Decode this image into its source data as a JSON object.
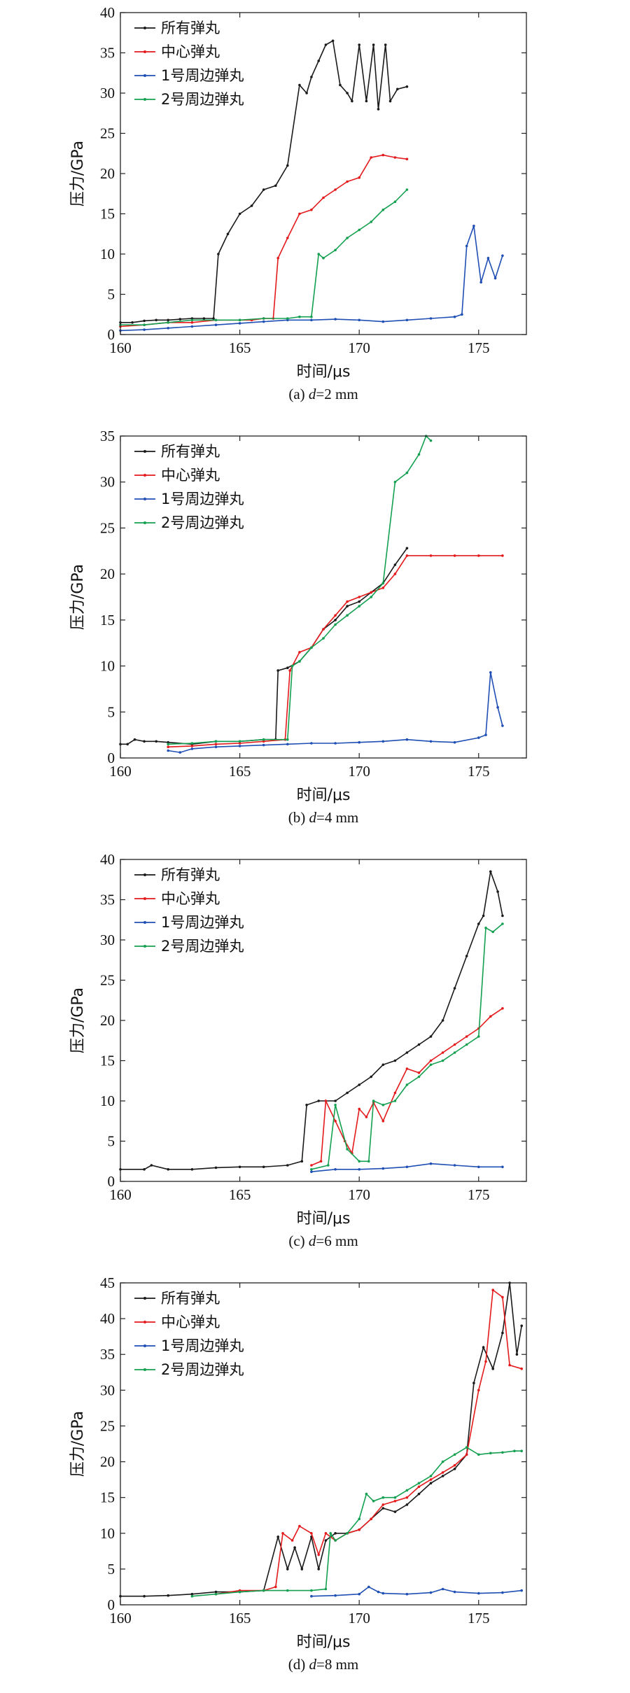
{
  "chart_data": [
    {
      "type": "line",
      "caption": "(a) d=2 mm",
      "xlabel": "时间/μs",
      "ylabel": "压力/GPa",
      "xlim": [
        160,
        177
      ],
      "ylim": [
        0,
        40
      ],
      "xticks": [
        160,
        165,
        170,
        175
      ],
      "yticks": [
        0,
        5,
        10,
        15,
        20,
        25,
        30,
        35,
        40
      ],
      "legend_position": "top-left",
      "series": [
        {
          "name": "所有弹丸",
          "color": "#1a1a1a",
          "x": [
            160,
            160.5,
            161,
            161.5,
            162,
            162.5,
            163,
            163.5,
            163.9,
            164.1,
            164.5,
            165,
            165.5,
            166,
            166.5,
            167,
            167.5,
            167.8,
            168,
            168.3,
            168.6,
            168.9,
            169.2,
            169.5,
            169.7,
            170,
            170.3,
            170.6,
            170.8,
            171.1,
            171.3,
            171.6,
            172
          ],
          "y": [
            1.5,
            1.5,
            1.7,
            1.8,
            1.8,
            1.9,
            2,
            2,
            2,
            10,
            12.5,
            15,
            16,
            18,
            18.5,
            21,
            31,
            30,
            32,
            34,
            36,
            36.5,
            31,
            30,
            29,
            36,
            29,
            36,
            28,
            36,
            29,
            30.5,
            30.8
          ]
        },
        {
          "name": "中心弹丸",
          "color": "#e41a1c",
          "x": [
            160,
            161,
            162,
            163,
            164,
            165,
            165.5,
            166,
            166.4,
            166.6,
            167,
            167.5,
            168,
            168.5,
            169,
            169.5,
            170,
            170.5,
            171,
            171.5,
            172
          ],
          "y": [
            1,
            1.2,
            1.5,
            1.5,
            1.8,
            1.8,
            1.8,
            2,
            2,
            9.5,
            12,
            15,
            15.5,
            17,
            18,
            19,
            19.5,
            22,
            22.3,
            22,
            21.8
          ]
        },
        {
          "name": "1号周边弹丸",
          "color": "#1f4fb4",
          "x": [
            160,
            161,
            162,
            163,
            164,
            165,
            166,
            167,
            168,
            169,
            170,
            171,
            172,
            173,
            174,
            174.3,
            174.5,
            174.8,
            175.1,
            175.4,
            175.7,
            176
          ],
          "y": [
            0.5,
            0.6,
            0.8,
            1,
            1.2,
            1.4,
            1.6,
            1.8,
            1.8,
            1.9,
            1.8,
            1.6,
            1.8,
            2,
            2.2,
            2.5,
            11,
            13.5,
            6.5,
            9.5,
            7,
            9.8
          ]
        },
        {
          "name": "2号周边弹丸",
          "color": "#14a050",
          "x": [
            160,
            161,
            162,
            163,
            164,
            165,
            166,
            167,
            167.5,
            168,
            168.3,
            168.5,
            169,
            169.5,
            170,
            170.5,
            171,
            171.5,
            172
          ],
          "y": [
            1.2,
            1.2,
            1.5,
            1.8,
            1.8,
            1.8,
            2,
            2,
            2.2,
            2.2,
            10,
            9.5,
            10.5,
            12,
            13,
            14,
            15.5,
            16.5,
            18
          ]
        }
      ]
    },
    {
      "type": "line",
      "caption": "(b) d=4 mm",
      "xlabel": "时间/μs",
      "ylabel": "压力/GPa",
      "xlim": [
        160,
        177
      ],
      "ylim": [
        0,
        35
      ],
      "xticks": [
        160,
        165,
        170,
        175
      ],
      "yticks": [
        0,
        5,
        10,
        15,
        20,
        25,
        30,
        35
      ],
      "legend_position": "top-left",
      "series": [
        {
          "name": "所有弹丸",
          "color": "#1a1a1a",
          "x": [
            160,
            160.3,
            160.6,
            161,
            161.5,
            162,
            163,
            164,
            165,
            166,
            166.5,
            166.6,
            167,
            167.5,
            168,
            168.5,
            169,
            169.5,
            170,
            170.5,
            171,
            171.5,
            172
          ],
          "y": [
            1.5,
            1.5,
            2,
            1.8,
            1.8,
            1.7,
            1.5,
            1.8,
            1.8,
            2,
            2,
            9.5,
            9.8,
            10.5,
            12,
            14,
            15,
            16.5,
            17,
            18,
            19,
            21,
            22.8
          ]
        },
        {
          "name": "中心弹丸",
          "color": "#e41a1c",
          "x": [
            162,
            163,
            164,
            165,
            166,
            166.9,
            167.1,
            167.5,
            168,
            168.5,
            169,
            169.5,
            170,
            170.5,
            171,
            171.5,
            172,
            173,
            174,
            175,
            176
          ],
          "y": [
            1.2,
            1.3,
            1.5,
            1.6,
            1.8,
            2,
            9.5,
            11.5,
            12,
            14,
            15.5,
            17,
            17.5,
            18,
            18.5,
            20,
            22,
            22,
            22,
            22,
            22
          ]
        },
        {
          "name": "1号周边弹丸",
          "color": "#1f4fb4",
          "x": [
            162,
            162.5,
            163,
            164,
            165,
            166,
            167,
            168,
            169,
            170,
            171,
            172,
            173,
            174,
            175,
            175.3,
            175.5,
            175.8,
            176
          ],
          "y": [
            0.8,
            0.6,
            1,
            1.2,
            1.3,
            1.4,
            1.5,
            1.6,
            1.6,
            1.7,
            1.8,
            2,
            1.8,
            1.7,
            2.2,
            2.5,
            9.3,
            5.5,
            3.5
          ]
        },
        {
          "name": "2号周边弹丸",
          "color": "#14a050",
          "x": [
            162,
            163,
            164,
            165,
            166,
            167,
            167.2,
            167.5,
            168,
            168.5,
            169,
            169.5,
            170,
            170.5,
            171,
            171.5,
            172,
            172.5,
            172.8,
            173
          ],
          "y": [
            1.5,
            1.6,
            1.8,
            1.8,
            2,
            2,
            10,
            10.5,
            12,
            13,
            14.5,
            15.5,
            16.5,
            17.5,
            19,
            30,
            31,
            33,
            35,
            34.5
          ]
        }
      ]
    },
    {
      "type": "line",
      "caption": "(c) d=6 mm",
      "xlabel": "时间/μs",
      "ylabel": "压力/GPa",
      "xlim": [
        160,
        177
      ],
      "ylim": [
        0,
        40
      ],
      "xticks": [
        160,
        165,
        170,
        175
      ],
      "yticks": [
        0,
        5,
        10,
        15,
        20,
        25,
        30,
        35,
        40
      ],
      "legend_position": "top-left",
      "series": [
        {
          "name": "所有弹丸",
          "color": "#1a1a1a",
          "x": [
            160,
            161,
            161.3,
            162,
            163,
            164,
            165,
            166,
            167,
            167.6,
            167.8,
            168.3,
            169,
            169.5,
            170,
            170.5,
            171,
            171.5,
            172,
            172.5,
            173,
            173.5,
            174,
            174.5,
            175,
            175.2,
            175.5,
            175.8,
            176
          ],
          "y": [
            1.5,
            1.5,
            2,
            1.5,
            1.5,
            1.7,
            1.8,
            1.8,
            2,
            2.5,
            9.5,
            10,
            10,
            11,
            12,
            13,
            14.5,
            15,
            16,
            17,
            18,
            20,
            24,
            28,
            32,
            33,
            38.5,
            36,
            33
          ]
        },
        {
          "name": "中心弹丸",
          "color": "#e41a1c",
          "x": [
            168,
            168.4,
            168.6,
            169,
            169.4,
            169.7,
            170,
            170.3,
            170.6,
            171,
            171.5,
            172,
            172.5,
            173,
            173.5,
            174,
            174.5,
            175,
            175.5,
            176
          ],
          "y": [
            2,
            2.5,
            10,
            7.5,
            5,
            3.5,
            9,
            8,
            9.8,
            7.5,
            11,
            14,
            13.5,
            15,
            16,
            17,
            18,
            19,
            20.5,
            21.5
          ]
        },
        {
          "name": "1号周边弹丸",
          "color": "#1f4fb4",
          "x": [
            168,
            169,
            170,
            171,
            172,
            173,
            174,
            175,
            176
          ],
          "y": [
            1.2,
            1.5,
            1.5,
            1.6,
            1.8,
            2.2,
            2.0,
            1.8,
            1.8
          ]
        },
        {
          "name": "2号周边弹丸",
          "color": "#14a050",
          "x": [
            168,
            168.7,
            169,
            169.5,
            170,
            170.4,
            170.6,
            171,
            171.5,
            172,
            172.5,
            173,
            173.5,
            174,
            174.5,
            175,
            175.3,
            175.6,
            176
          ],
          "y": [
            1.5,
            2,
            9.5,
            4,
            2.5,
            2.5,
            10,
            9.5,
            10,
            12,
            13,
            14.5,
            15,
            16,
            17,
            18,
            31.5,
            31,
            32
          ]
        }
      ]
    },
    {
      "type": "line",
      "caption": "(d) d=8 mm",
      "xlabel": "时间/μs",
      "ylabel": "压力/GPa",
      "xlim": [
        160,
        177
      ],
      "ylim": [
        0,
        45
      ],
      "xticks": [
        160,
        165,
        170,
        175
      ],
      "yticks": [
        0,
        5,
        10,
        15,
        20,
        25,
        30,
        35,
        40,
        45
      ],
      "legend_position": "top-left",
      "series": [
        {
          "name": "所有弹丸",
          "color": "#1a1a1a",
          "x": [
            160,
            161,
            162,
            163,
            164,
            165,
            166,
            166.6,
            167,
            167.3,
            167.6,
            168,
            168.3,
            168.6,
            169,
            169.5,
            170,
            170.5,
            171,
            171.5,
            172,
            172.5,
            173,
            173.5,
            174,
            174.5,
            174.8,
            175.2,
            175.6,
            176,
            176.3,
            176.6,
            176.8
          ],
          "y": [
            1.2,
            1.2,
            1.3,
            1.5,
            1.8,
            1.8,
            2,
            9.5,
            5,
            8,
            5,
            9.5,
            5,
            9,
            10,
            10,
            10.5,
            12,
            13.5,
            13,
            14,
            15.5,
            17,
            18,
            19,
            21,
            31,
            36,
            33,
            38,
            45,
            35,
            39
          ]
        },
        {
          "name": "中心弹丸",
          "color": "#e41a1c",
          "x": [
            164,
            165,
            166,
            166.5,
            166.8,
            167.2,
            167.5,
            168,
            168.3,
            168.6,
            169,
            169.5,
            170,
            170.5,
            171,
            171.5,
            172,
            172.5,
            173,
            173.5,
            174,
            174.5,
            175,
            175.3,
            175.6,
            176,
            176.3,
            176.8
          ],
          "y": [
            1.5,
            2,
            2,
            2.5,
            10,
            9,
            11,
            10,
            7,
            10,
            9,
            10,
            10.5,
            12,
            14,
            14.5,
            15,
            16.5,
            17.5,
            18.5,
            19.5,
            21,
            30,
            34,
            44,
            43,
            33.5,
            33
          ]
        },
        {
          "name": "1号周边弹丸",
          "color": "#1f4fb4",
          "x": [
            168,
            169,
            170,
            170.4,
            170.8,
            171,
            172,
            173,
            173.5,
            174,
            175,
            176,
            176.8
          ],
          "y": [
            1.2,
            1.3,
            1.5,
            2.5,
            1.8,
            1.6,
            1.5,
            1.7,
            2.2,
            1.8,
            1.6,
            1.7,
            2
          ]
        },
        {
          "name": "2号周边弹丸",
          "color": "#14a050",
          "x": [
            163,
            164,
            165,
            166,
            167,
            168,
            168.6,
            168.8,
            169,
            169.5,
            170,
            170.3,
            170.6,
            171,
            171.5,
            172,
            172.5,
            173,
            173.5,
            174,
            174.5,
            175,
            175.5,
            176,
            176.5,
            176.8
          ],
          "y": [
            1.2,
            1.5,
            1.8,
            2,
            2,
            2,
            2.2,
            10,
            9,
            10,
            12,
            15.5,
            14.5,
            15,
            15,
            16,
            17,
            18,
            20,
            21,
            22,
            21,
            21.2,
            21.3,
            21.5,
            21.5
          ]
        }
      ]
    }
  ]
}
